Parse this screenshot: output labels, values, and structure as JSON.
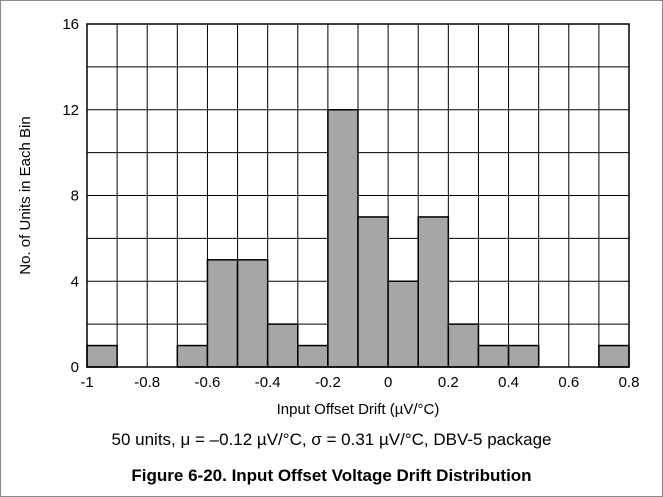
{
  "chart_data": {
    "type": "bar",
    "title": "",
    "xlabel": "Input Offset Drift (µV/°C)",
    "ylabel": "No. of Units in Each Bin",
    "xlim": [
      -1,
      0.8
    ],
    "ylim": [
      0,
      16
    ],
    "x_ticks": [
      -1,
      -0.8,
      -0.6,
      -0.4,
      -0.2,
      0,
      0.2,
      0.4,
      0.6,
      0.8
    ],
    "x_tick_labels": [
      "-1",
      "-0.8",
      "-0.6",
      "-0.4",
      "-0.2",
      "0",
      "0.2",
      "0.4",
      "0.6",
      "0.8"
    ],
    "y_ticks": [
      0,
      4,
      8,
      12,
      16
    ],
    "y_tick_labels": [
      "0",
      "4",
      "8",
      "12",
      "16"
    ],
    "bin_width": 0.1,
    "bin_starts": [
      -1.0,
      -0.9,
      -0.8,
      -0.7,
      -0.6,
      -0.5,
      -0.4,
      -0.3,
      -0.2,
      -0.1,
      0.0,
      0.1,
      0.2,
      0.3,
      0.4,
      0.5,
      0.6,
      0.7
    ],
    "values": [
      1,
      0,
      0,
      1,
      5,
      5,
      2,
      1,
      12,
      7,
      4,
      7,
      2,
      1,
      1,
      0,
      0,
      1
    ],
    "grid": true,
    "bar_color": "#a6a6a6",
    "bar_edge_color": "#000000",
    "grid_color": "#000000"
  },
  "note": "50 units, μ = –0.12 µV/°C, σ = 0.31 µV/°C, DBV-5 package",
  "figure_title": "Figure 6-20. Input Offset Voltage Drift Distribution"
}
